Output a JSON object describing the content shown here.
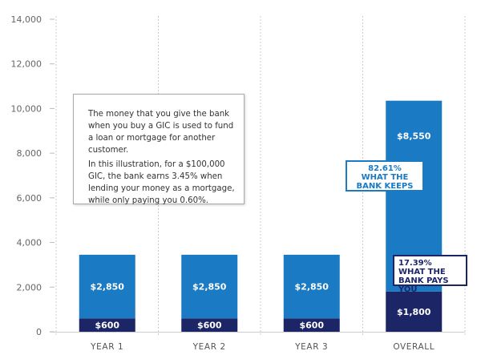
{
  "chart_data": {
    "type": "bar",
    "stacked": true,
    "categories": [
      "YEAR 1",
      "YEAR 2",
      "YEAR 3",
      "OVERALL"
    ],
    "series": [
      {
        "values": [
          600,
          600,
          600,
          1800
        ],
        "labels": [
          "$600",
          "$600",
          "$600",
          "$1,800"
        ],
        "color": "#1c2566"
      },
      {
        "values": [
          2850,
          2850,
          2850,
          8550
        ],
        "labels": [
          "$2,850",
          "$2,850",
          "$2,850",
          "$8,550"
        ],
        "color": "#1a7ac4"
      }
    ],
    "ylim": [
      0,
      14000
    ],
    "yticks": [
      0,
      2000,
      4000,
      6000,
      8000,
      10000,
      12000,
      14000
    ],
    "ytick_labels": [
      "0",
      "2,000",
      "4,000",
      "6,000",
      "8,000",
      "10,000",
      "12,000",
      "14,000"
    ],
    "grid": "vertical-dashed",
    "annotations": {
      "keeps": {
        "pct": "82.61%",
        "line1": "WHAT THE",
        "line2": "BANK KEEPS"
      },
      "pays": {
        "pct": "17.39%",
        "line1": "WHAT THE",
        "line2": "BANK PAYS YOU"
      },
      "callout": {
        "p1": "The money that you give the bank when you buy a GIC is used to fund a loan or mortgage for another customer.",
        "p2": "In this illustration, for a $100,000 GIC, the bank earns 3.45% when lending your money as a mortgage, while only paying you 0.60%."
      }
    }
  }
}
